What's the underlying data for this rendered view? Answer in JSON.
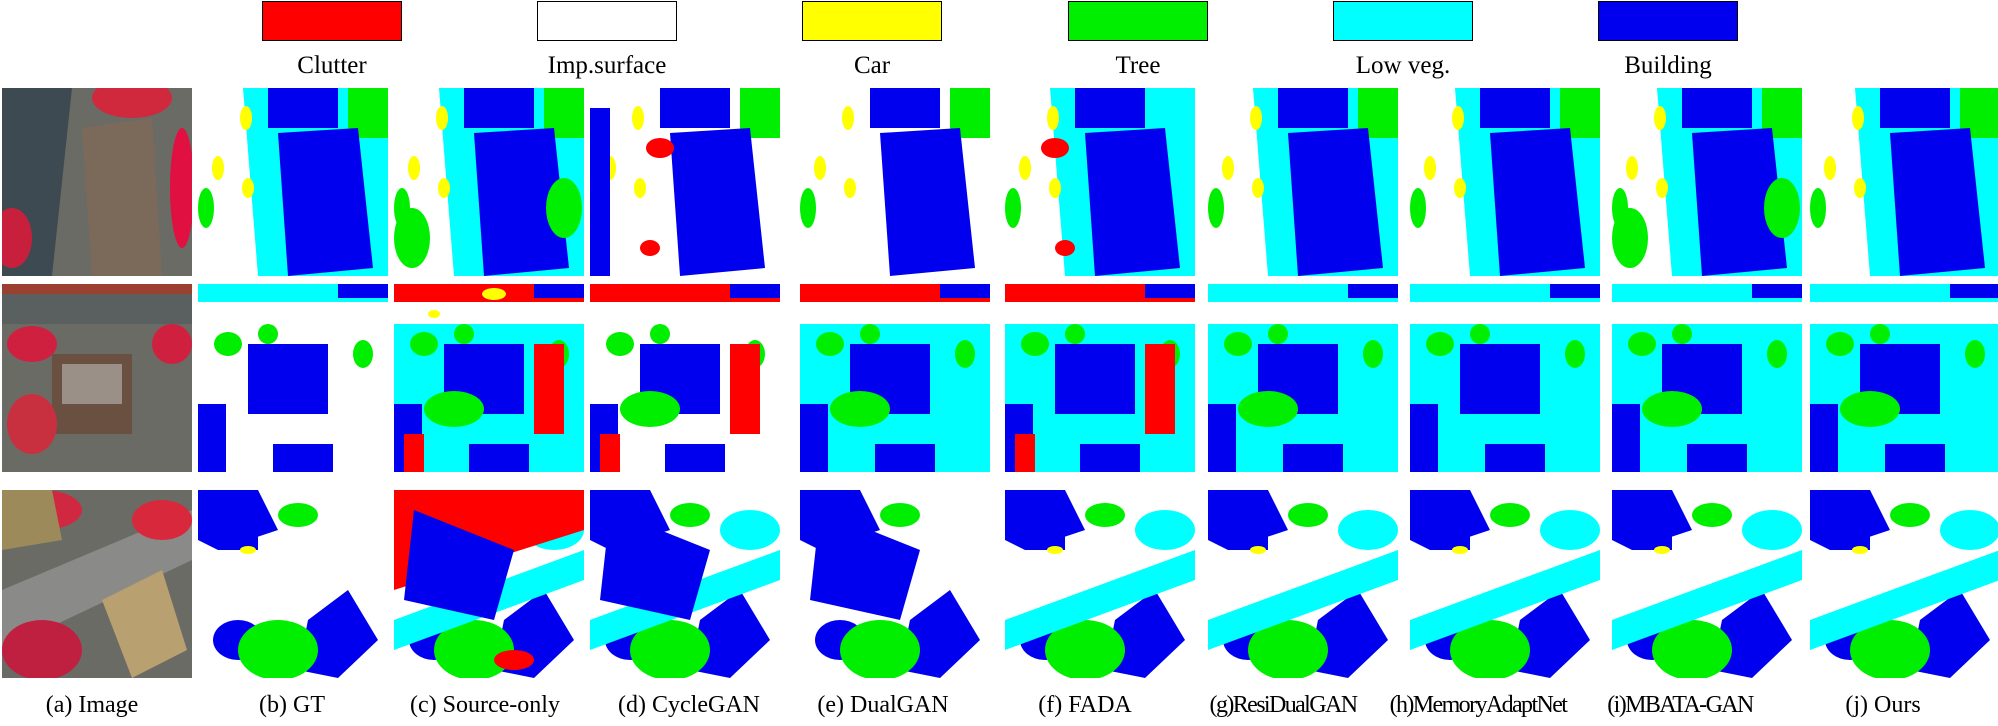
{
  "legend": [
    {
      "label": "Clutter",
      "color": "#ff0000"
    },
    {
      "label": "Imp.surface",
      "color": "#ffffff"
    },
    {
      "label": "Car",
      "color": "#ffff00"
    },
    {
      "label": "Tree",
      "color": "#00ee00"
    },
    {
      "label": "Low veg.",
      "color": "#00ffff"
    },
    {
      "label": "Building",
      "color": "#0000ee"
    }
  ],
  "captions": [
    "(a) Image",
    "(b) GT",
    "(c) Source-only",
    "(d) CycleGAN",
    "(e) DualGAN",
    "(f) FADA",
    "(g)ResiDualGAN",
    "(h)MemoryAdaptNet",
    "(i)MBATA-GAN",
    "(j) Ours"
  ]
}
